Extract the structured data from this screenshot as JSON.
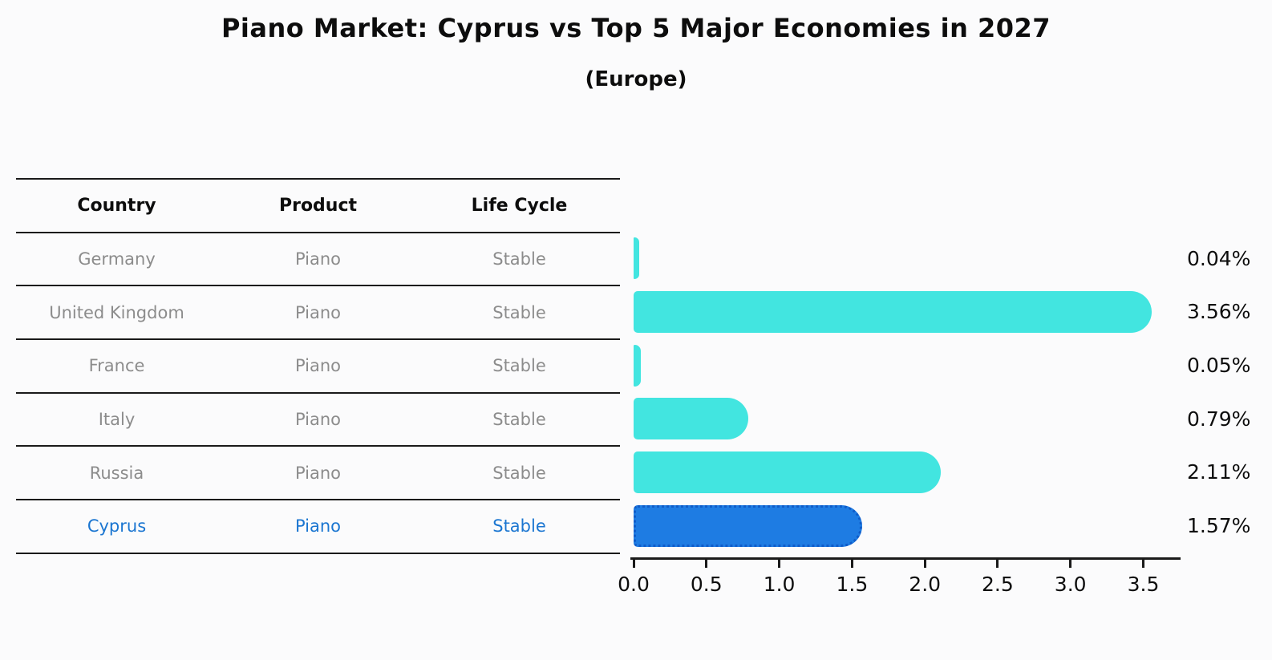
{
  "title": "Piano Market: Cyprus vs Top 5 Major Economies in 2027",
  "subtitle": "(Europe)",
  "table": {
    "headers": [
      "Country",
      "Product",
      "Life Cycle"
    ],
    "rows": [
      {
        "country": "Germany",
        "product": "Piano",
        "life_cycle": "Stable",
        "highlight": false
      },
      {
        "country": "United Kingdom",
        "product": "Piano",
        "life_cycle": "Stable",
        "highlight": false
      },
      {
        "country": "France",
        "product": "Piano",
        "life_cycle": "Stable",
        "highlight": false
      },
      {
        "country": "Italy",
        "product": "Piano",
        "life_cycle": "Stable",
        "highlight": false
      },
      {
        "country": "Russia",
        "product": "Piano",
        "life_cycle": "Stable",
        "highlight": false
      },
      {
        "country": "Cyprus",
        "product": "Piano",
        "life_cycle": "Stable",
        "highlight": true
      }
    ]
  },
  "chart_data": {
    "type": "bar",
    "orientation": "horizontal",
    "title": "Piano Market: Cyprus vs Top 5 Major Economies in 2027",
    "subtitle": "(Europe)",
    "categories": [
      "Germany",
      "United Kingdom",
      "France",
      "Italy",
      "Russia",
      "Cyprus"
    ],
    "values": [
      0.04,
      3.56,
      0.05,
      0.79,
      2.11,
      1.57
    ],
    "value_labels": [
      "0.04%",
      "3.56%",
      "0.05%",
      "0.79%",
      "2.11%",
      "1.57%"
    ],
    "xlabel": "",
    "ylabel": "",
    "xlim": [
      0,
      3.745
    ],
    "xticks": [
      {
        "value": 0.0,
        "label": "0.0"
      },
      {
        "value": 0.5,
        "label": "0.5"
      },
      {
        "value": 1.0,
        "label": "1.0"
      },
      {
        "value": 1.5,
        "label": "1.5"
      },
      {
        "value": 2.0,
        "label": "2.0"
      },
      {
        "value": 2.5,
        "label": "2.5"
      },
      {
        "value": 3.0,
        "label": "3.0"
      },
      {
        "value": 3.5,
        "label": "3.5"
      }
    ],
    "grid": false,
    "legend": false,
    "highlight_index": 5,
    "bar_color": "#42e5e0",
    "highlight_color": "#1e7ce3",
    "highlight_border_color": "#0f5cc9",
    "highlight_text_color": "#1b76d1",
    "row_text_color": "#8c8c8c",
    "axis_color": "#1a1a1a"
  }
}
